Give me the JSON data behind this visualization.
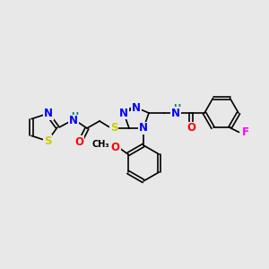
{
  "bg_color": "#e8e8e8",
  "atom_colors": {
    "N": "#0000ff",
    "O": "#ff0000",
    "S": "#cccc00",
    "F": "#ff00ff",
    "C": "#000000",
    "H": "#008080"
  },
  "font_size_atom": 8.5,
  "font_size_small": 7.0
}
